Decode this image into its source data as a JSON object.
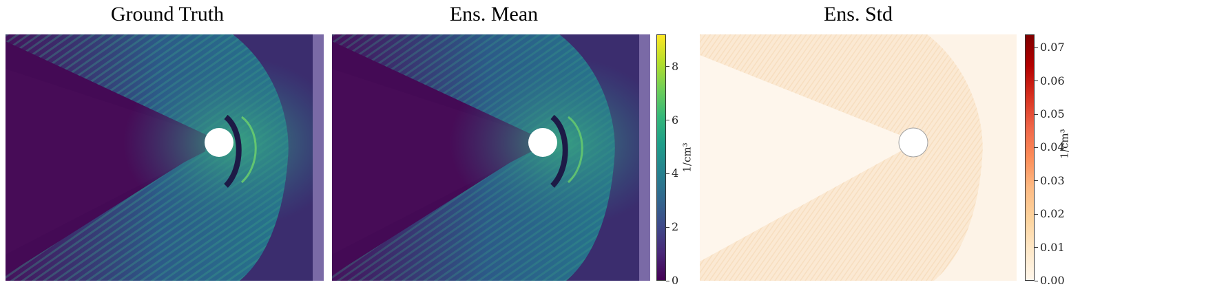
{
  "chart_data": [
    {
      "type": "heatmap",
      "title": "Ground Truth",
      "colormap": "viridis",
      "shares_colorbar_with": "Ens. Mean"
    },
    {
      "type": "heatmap",
      "title": "Ens. Mean",
      "colormap": "viridis",
      "colorbar": {
        "label": "1/cm³",
        "range": [
          0,
          9.2
        ],
        "ticks": [
          0,
          2,
          4,
          6,
          8
        ],
        "tick_labels": [
          "0",
          "2",
          "4",
          "6",
          "8"
        ]
      }
    },
    {
      "type": "heatmap",
      "title": "Ens. Std",
      "colormap": "OrRd",
      "colorbar": {
        "label": "1/cm³",
        "range": [
          0,
          0.074
        ],
        "ticks": [
          0.0,
          0.01,
          0.02,
          0.03,
          0.04,
          0.05,
          0.06,
          0.07
        ],
        "tick_labels": [
          "0.00",
          "0.01",
          "0.02",
          "0.03",
          "0.04",
          "0.05",
          "0.06",
          "0.07"
        ]
      }
    }
  ],
  "colors": {
    "viridis_bg": "#3b2d6e",
    "viridis_dark": "#440a55",
    "viridis_shock": "#2f6c8e",
    "viridis_bright": "#3bc07a",
    "std_bg": "#fdf1e3",
    "std_shock": "#f7ddbf"
  }
}
